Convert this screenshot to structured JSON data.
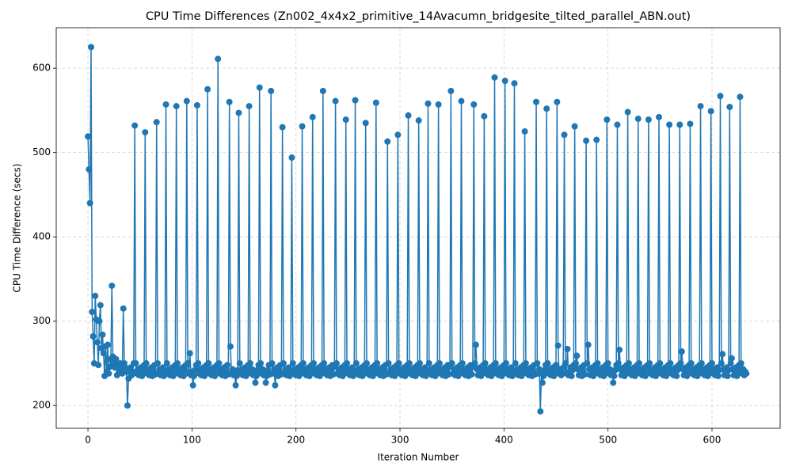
{
  "chart_data": {
    "type": "line",
    "title": "CPU Time Differences (Zn002_4x4x2_primitive_14Avacumn_bridgesite_tilted_parallel_ABN.out)",
    "xlabel": "Iteration Number",
    "ylabel": "CPU Time Difference (secs)",
    "xlim": [
      -30.5,
      665.5
    ],
    "ylim": [
      173,
      648
    ],
    "xticks": [
      0,
      100,
      200,
      300,
      400,
      500,
      600
    ],
    "yticks": [
      200,
      300,
      400,
      500,
      600
    ],
    "grid": true,
    "x": [
      0,
      1,
      2,
      3,
      4,
      5,
      6,
      7,
      8,
      9,
      10,
      11,
      12,
      13,
      14,
      15,
      16,
      17,
      18,
      19,
      20,
      21,
      22,
      23,
      24,
      25,
      26,
      27,
      28,
      29,
      30,
      31,
      32,
      33,
      34,
      35,
      36,
      37,
      38,
      39,
      40,
      41,
      42,
      43,
      44,
      45,
      46,
      47,
      48,
      49,
      50,
      51,
      52,
      53,
      54,
      55,
      56,
      57,
      58,
      59,
      60,
      61,
      62,
      63,
      64,
      65,
      66,
      67,
      68,
      69,
      70,
      71,
      72,
      73,
      74,
      75,
      76,
      77,
      78,
      79,
      80,
      81,
      82,
      83,
      84,
      85,
      86,
      87,
      88,
      89,
      90,
      91,
      92,
      93,
      94,
      95,
      96,
      97,
      98,
      99,
      100,
      101,
      102,
      103,
      104,
      105,
      106,
      107,
      108,
      109,
      110,
      111,
      112,
      113,
      114,
      115,
      116,
      117,
      118,
      119,
      120,
      121,
      122,
      123,
      124,
      125,
      126,
      127,
      128,
      129,
      130,
      131,
      132,
      133,
      134,
      135,
      136,
      137,
      138,
      139,
      140,
      141,
      142,
      143,
      144,
      145,
      146,
      147,
      148,
      149,
      150,
      151,
      152,
      153,
      154,
      155,
      156,
      157,
      158,
      159,
      160,
      161,
      162,
      163,
      164,
      165,
      166,
      167,
      168,
      169,
      170,
      171,
      172,
      173,
      174,
      175,
      176,
      177,
      178,
      179,
      180,
      181,
      182,
      183,
      184,
      185,
      186,
      187,
      188,
      189,
      190,
      191,
      192,
      193,
      194,
      195,
      196,
      197,
      198,
      199,
      200,
      201,
      202,
      203,
      204,
      205,
      206,
      207,
      208,
      209,
      210,
      211,
      212,
      213,
      214,
      215,
      216,
      217,
      218,
      219,
      220,
      221,
      222,
      223,
      224,
      225,
      226,
      227,
      228,
      229,
      230,
      231,
      232,
      233,
      234,
      235,
      236,
      237,
      238,
      239,
      240,
      241,
      242,
      243,
      244,
      245,
      246,
      247,
      248,
      249,
      250,
      251,
      252,
      253,
      254,
      255,
      256,
      257,
      258,
      259,
      260,
      261,
      262,
      263,
      264,
      265,
      266,
      267,
      268,
      269,
      270,
      271,
      272,
      273,
      274,
      275,
      276,
      277,
      278,
      279,
      280,
      281,
      282,
      283,
      284,
      285,
      286,
      287,
      288,
      289,
      290,
      291,
      292,
      293,
      294,
      295,
      296,
      297,
      298,
      299,
      300,
      301,
      302,
      303,
      304,
      305,
      306,
      307,
      308,
      309,
      310,
      311,
      312,
      313,
      314,
      315,
      316,
      317,
      318,
      319,
      320,
      321,
      322,
      323,
      324,
      325,
      326,
      327,
      328,
      329,
      330,
      331,
      332,
      333,
      334,
      335,
      336,
      337,
      338,
      339,
      340,
      341,
      342,
      343,
      344,
      345,
      346,
      347,
      348,
      349,
      350,
      351,
      352,
      353,
      354,
      355,
      356,
      357,
      358,
      359,
      360,
      361,
      362,
      363,
      364,
      365,
      366,
      367,
      368,
      369,
      370,
      371,
      372,
      373,
      374,
      375,
      376,
      377,
      378,
      379,
      380,
      381,
      382,
      383,
      384,
      385,
      386,
      387,
      388,
      389,
      390,
      391,
      392,
      393,
      394,
      395,
      396,
      397,
      398,
      399,
      400,
      401,
      402,
      403,
      404,
      405,
      406,
      407,
      408,
      409,
      410,
      411,
      412,
      413,
      414,
      415,
      416,
      417,
      418,
      419,
      420,
      421,
      422,
      423,
      424,
      425,
      426,
      427,
      428,
      429,
      430,
      431,
      432,
      433,
      434,
      435,
      436,
      437,
      438,
      439,
      440,
      441,
      442,
      443,
      444,
      445,
      446,
      447,
      448,
      449,
      450,
      451,
      452,
      453,
      454,
      455,
      456,
      457,
      458,
      459,
      460,
      461,
      462,
      463,
      464,
      465,
      466,
      467,
      468,
      469,
      470,
      471,
      472,
      473,
      474,
      475,
      476,
      477,
      478,
      479,
      480,
      481,
      482,
      483,
      484,
      485,
      486,
      487,
      488,
      489,
      490,
      491,
      492,
      493,
      494,
      495,
      496,
      497,
      498,
      499,
      500,
      501,
      502,
      503,
      504,
      505,
      506,
      507,
      508,
      509,
      510,
      511,
      512,
      513,
      514,
      515,
      516,
      517,
      518,
      519,
      520,
      521,
      522,
      523,
      524,
      525,
      526,
      527,
      528,
      529,
      530,
      531,
      532,
      533,
      534,
      535,
      536,
      537,
      538,
      539,
      540,
      541,
      542,
      543,
      544,
      545,
      546,
      547,
      548,
      549,
      550,
      551,
      552,
      553,
      554,
      555,
      556,
      557,
      558,
      559,
      560,
      561,
      562,
      563,
      564,
      565,
      566,
      567,
      568,
      569,
      570,
      571,
      572,
      573,
      574,
      575,
      576,
      577,
      578,
      579,
      580,
      581,
      582,
      583,
      584,
      585,
      586,
      587,
      588,
      589,
      590,
      591,
      592,
      593,
      594,
      595,
      596,
      597,
      598,
      599,
      600,
      601,
      602,
      603,
      604,
      605,
      606,
      607,
      608,
      609,
      610,
      611,
      612,
      613,
      614,
      615,
      616,
      617,
      618,
      619,
      620,
      621,
      622,
      623,
      624,
      625,
      626,
      627,
      628,
      629,
      630,
      631,
      632,
      633
    ],
    "series": [
      {
        "color": "#1f77b4",
        "values": [
          519,
          480,
          440,
          625,
          311,
          282,
          250,
          330,
          302,
          275,
          248,
          300,
          319,
          268,
          284,
          262,
          235,
          270,
          240,
          272,
          238,
          246,
          255,
          342,
          258,
          250,
          245,
          255,
          236,
          248,
          240,
          250,
          244,
          238,
          315,
          250,
          245,
          240,
          200,
          232,
          240,
          245,
          236,
          240,
          250,
          532,
          250,
          238,
          243,
          236,
          240,
          245,
          235,
          242,
          248,
          524,
          250,
          238,
          243,
          236,
          240,
          245,
          235,
          242,
          248,
          237,
          536,
          250,
          238,
          243,
          236,
          240,
          245,
          235,
          242,
          557,
          250,
          238,
          243,
          236,
          240,
          245,
          235,
          242,
          248,
          555,
          250,
          238,
          243,
          236,
          240,
          245,
          235,
          242,
          248,
          561,
          250,
          238,
          262,
          236,
          240,
          224,
          235,
          242,
          248,
          556,
          250,
          238,
          243,
          236,
          240,
          245,
          235,
          242,
          248,
          575,
          250,
          238,
          243,
          236,
          240,
          245,
          235,
          242,
          248,
          611,
          250,
          238,
          243,
          236,
          240,
          245,
          235,
          242,
          248,
          237,
          560,
          270,
          238,
          243,
          236,
          240,
          224,
          235,
          242,
          547,
          250,
          238,
          243,
          236,
          240,
          245,
          235,
          242,
          248,
          555,
          250,
          238,
          243,
          236,
          240,
          227,
          235,
          242,
          248,
          577,
          250,
          238,
          243,
          236,
          240,
          227,
          235,
          242,
          248,
          237,
          573,
          250,
          238,
          243,
          224,
          240,
          245,
          235,
          242,
          248,
          237,
          530,
          250,
          238,
          243,
          236,
          240,
          245,
          235,
          242,
          494,
          250,
          238,
          243,
          236,
          240,
          245,
          235,
          242,
          248,
          531,
          250,
          238,
          243,
          236,
          240,
          245,
          235,
          242,
          248,
          542,
          250,
          238,
          243,
          236,
          240,
          245,
          235,
          242,
          248,
          573,
          250,
          238,
          243,
          236,
          240,
          245,
          235,
          242,
          248,
          237,
          246,
          561,
          250,
          238,
          243,
          236,
          240,
          245,
          235,
          242,
          248,
          539,
          250,
          238,
          243,
          236,
          240,
          245,
          235,
          242,
          562,
          250,
          238,
          243,
          236,
          240,
          245,
          235,
          242,
          248,
          535,
          250,
          238,
          243,
          236,
          240,
          245,
          235,
          242,
          248,
          559,
          250,
          238,
          243,
          236,
          240,
          245,
          235,
          242,
          248,
          237,
          513,
          250,
          238,
          243,
          236,
          240,
          245,
          235,
          242,
          248,
          521,
          250,
          238,
          243,
          236,
          240,
          245,
          235,
          242,
          248,
          544,
          250,
          238,
          243,
          236,
          240,
          245,
          235,
          242,
          248,
          538,
          250,
          238,
          243,
          236,
          240,
          245,
          235,
          242,
          558,
          250,
          238,
          243,
          236,
          240,
          245,
          235,
          242,
          248,
          557,
          250,
          238,
          243,
          236,
          240,
          245,
          235,
          242,
          248,
          237,
          246,
          573,
          250,
          238,
          243,
          236,
          240,
          245,
          235,
          242,
          248,
          561,
          250,
          238,
          243,
          236,
          240,
          245,
          235,
          242,
          248,
          237,
          246,
          557,
          250,
          272,
          243,
          236,
          240,
          245,
          235,
          242,
          248,
          543,
          250,
          238,
          243,
          236,
          240,
          245,
          235,
          242,
          248,
          589,
          250,
          238,
          243,
          236,
          240,
          245,
          235,
          242,
          248,
          585,
          250,
          238,
          243,
          236,
          240,
          245,
          235,
          242,
          582,
          250,
          238,
          243,
          236,
          240,
          245,
          235,
          242,
          248,
          525,
          250,
          238,
          243,
          236,
          240,
          245,
          235,
          242,
          248,
          237,
          560,
          250,
          238,
          243,
          193,
          240,
          227,
          235,
          242,
          248,
          552,
          250,
          238,
          243,
          236,
          240,
          245,
          235,
          242,
          248,
          560,
          271,
          238,
          243,
          236,
          240,
          245,
          521,
          250,
          238,
          267,
          236,
          240,
          245,
          235,
          242,
          248,
          531,
          250,
          259,
          243,
          236,
          240,
          245,
          235,
          242,
          248,
          237,
          514,
          250,
          272,
          243,
          236,
          240,
          245,
          235,
          242,
          248,
          515,
          250,
          238,
          243,
          236,
          240,
          245,
          235,
          242,
          248,
          539,
          250,
          238,
          243,
          236,
          240,
          227,
          235,
          242,
          248,
          533,
          250,
          266,
          243,
          236,
          240,
          245,
          235,
          242,
          248,
          548,
          250,
          238,
          243,
          236,
          240,
          245,
          235,
          242,
          248,
          540,
          250,
          238,
          243,
          236,
          240,
          245,
          235,
          242,
          248,
          539,
          250,
          238,
          243,
          236,
          240,
          245,
          235,
          242,
          248,
          542,
          250,
          238,
          243,
          236,
          240,
          245,
          235,
          242,
          248,
          533,
          250,
          238,
          243,
          236,
          240,
          245,
          235,
          242,
          248,
          533,
          250,
          264,
          243,
          236,
          240,
          245,
          235,
          242,
          248,
          534,
          250,
          238,
          243,
          236,
          240,
          245,
          235,
          242,
          248,
          555,
          250,
          238,
          243,
          236,
          240,
          245,
          235,
          242,
          248,
          549,
          250,
          238,
          243,
          236,
          240,
          245,
          235,
          242,
          567,
          250,
          261,
          243,
          236,
          240,
          245,
          235,
          242,
          554,
          250,
          256,
          243,
          236,
          240,
          245,
          235,
          242,
          248,
          566,
          250,
          238,
          243,
          236,
          240,
          238
        ]
      }
    ]
  }
}
